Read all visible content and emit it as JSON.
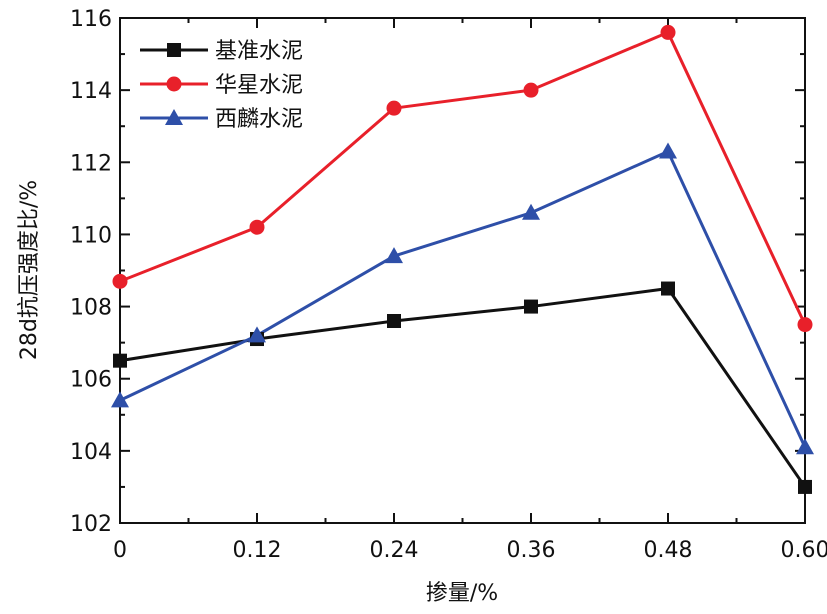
{
  "chart_data": {
    "type": "line",
    "xlabel": "掺量/%",
    "ylabel": "28d抗压强度比/%",
    "x": [
      0,
      0.12,
      0.24,
      0.36,
      0.48,
      0.6
    ],
    "x_tick_labels": [
      "0",
      "0.12",
      "0.24",
      "0.36",
      "0.48",
      "0.60"
    ],
    "xlim": [
      0,
      0.6
    ],
    "ylim": [
      102,
      116
    ],
    "y_ticks": [
      102,
      104,
      106,
      108,
      110,
      112,
      114,
      116
    ],
    "y_tick_labels": [
      "102",
      "104",
      "106",
      "108",
      "110",
      "112",
      "114",
      "116"
    ],
    "grid": false,
    "legend_position": "top-left",
    "series": [
      {
        "name": "基准水泥",
        "color": "#111111",
        "marker": "square",
        "values": [
          106.5,
          107.1,
          107.6,
          108.0,
          108.5,
          103.0
        ]
      },
      {
        "name": "华星水泥",
        "color": "#e8202a",
        "marker": "circle",
        "values": [
          108.7,
          110.2,
          113.5,
          114.0,
          115.6,
          107.5
        ]
      },
      {
        "name": "西麟水泥",
        "color": "#2e4fa8",
        "marker": "triangle",
        "values": [
          105.4,
          107.2,
          109.4,
          110.6,
          112.3,
          104.1
        ]
      }
    ]
  }
}
